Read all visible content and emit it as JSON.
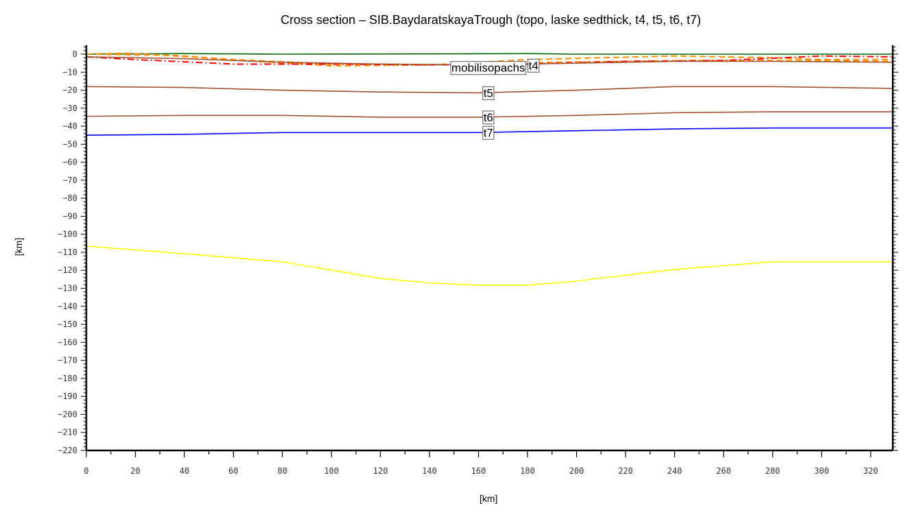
{
  "chart_data": {
    "type": "line",
    "title": "Cross section – SIB.BaydaratskayaTrough (topo, laske sedthick, t4, t5, t6, t7)",
    "xlabel": "[km]",
    "ylabel": "[km]",
    "xlim": [
      0,
      329
    ],
    "ylim": [
      -220,
      5
    ],
    "xticks": [
      0,
      20,
      40,
      60,
      80,
      100,
      120,
      140,
      160,
      180,
      200,
      220,
      240,
      260,
      280,
      300,
      320
    ],
    "yticks": [
      0,
      -10,
      -20,
      -30,
      -40,
      -50,
      -60,
      -70,
      -80,
      -90,
      -100,
      -110,
      -120,
      -130,
      -140,
      -150,
      -160,
      -170,
      -180,
      -190,
      -200,
      -210,
      -220
    ],
    "grid": false,
    "series": [
      {
        "id": "topo",
        "color": "#006400",
        "dash": "solid",
        "points": [
          [
            0,
            0
          ],
          [
            40,
            0.3
          ],
          [
            80,
            0
          ],
          [
            160,
            0.2
          ],
          [
            180,
            0.3
          ],
          [
            200,
            0
          ],
          [
            329,
            0
          ]
        ]
      },
      {
        "id": "sed1",
        "color": "#ff8c00",
        "dash": "dashed",
        "points": [
          [
            0,
            0
          ],
          [
            15,
            0.5
          ],
          [
            40,
            -1
          ],
          [
            70,
            -4
          ],
          [
            100,
            -6.5
          ],
          [
            140,
            -6
          ],
          [
            180,
            -3
          ],
          [
            240,
            -1
          ],
          [
            280,
            -2
          ],
          [
            300,
            -3
          ],
          [
            329,
            -3
          ]
        ]
      },
      {
        "id": "sed2",
        "color": "#ff8c00",
        "dash": "dashed",
        "points": [
          [
            0,
            0
          ],
          [
            30,
            -0.5
          ],
          [
            60,
            -3
          ],
          [
            100,
            -5.5
          ],
          [
            150,
            -5.8
          ],
          [
            190,
            -4.5
          ],
          [
            250,
            -3.5
          ],
          [
            290,
            -3.5
          ],
          [
            329,
            -4
          ]
        ]
      },
      {
        "id": "mobilisopachs",
        "color": "#ff0000",
        "dash": "dashdot",
        "points": [
          [
            0,
            -1.5
          ],
          [
            20,
            -3
          ],
          [
            60,
            -5.5
          ],
          [
            100,
            -5.5
          ],
          [
            140,
            -6
          ],
          [
            180,
            -5.5
          ],
          [
            220,
            -4
          ],
          [
            260,
            -3.5
          ],
          [
            300,
            -1
          ],
          [
            329,
            -1.5
          ]
        ]
      },
      {
        "id": "t4",
        "color": "#a0522d",
        "dash": "solid",
        "points": [
          [
            0,
            -1.5
          ],
          [
            40,
            -2.5
          ],
          [
            80,
            -4.5
          ],
          [
            120,
            -5.5
          ],
          [
            160,
            -6
          ],
          [
            200,
            -5
          ],
          [
            240,
            -4
          ],
          [
            280,
            -4
          ],
          [
            329,
            -4.5
          ]
        ]
      },
      {
        "id": "t5",
        "color": "#a0522d",
        "dash": "solid",
        "points": [
          [
            0,
            -18
          ],
          [
            40,
            -18.5
          ],
          [
            80,
            -20
          ],
          [
            120,
            -21
          ],
          [
            160,
            -21.5
          ],
          [
            200,
            -20
          ],
          [
            240,
            -18
          ],
          [
            280,
            -18
          ],
          [
            329,
            -19
          ]
        ]
      },
      {
        "id": "t6",
        "color": "#a0522d",
        "dash": "solid",
        "points": [
          [
            0,
            -34.5
          ],
          [
            40,
            -34
          ],
          [
            80,
            -34
          ],
          [
            120,
            -35
          ],
          [
            160,
            -35
          ],
          [
            200,
            -34
          ],
          [
            240,
            -32.5
          ],
          [
            280,
            -32
          ],
          [
            329,
            -32
          ]
        ]
      },
      {
        "id": "t7",
        "color": "#0000ff",
        "dash": "solid",
        "points": [
          [
            0,
            -45
          ],
          [
            40,
            -44.5
          ],
          [
            80,
            -43.5
          ],
          [
            160,
            -43.5
          ],
          [
            200,
            -42.5
          ],
          [
            240,
            -41.5
          ],
          [
            280,
            -41
          ],
          [
            329,
            -41
          ]
        ]
      },
      {
        "id": "moho",
        "color": "#ffff00",
        "dash": "solid",
        "points": [
          [
            0,
            -106.6
          ],
          [
            40,
            -110.8
          ],
          [
            80,
            -115.3
          ],
          [
            120,
            -124.5
          ],
          [
            140,
            -127
          ],
          [
            160,
            -128.3
          ],
          [
            180,
            -128.3
          ],
          [
            200,
            -126
          ],
          [
            240,
            -119.5
          ],
          [
            280,
            -115.3
          ],
          [
            329,
            -115.3
          ]
        ]
      }
    ],
    "annotations": [
      {
        "text": "mobilisopachs",
        "x": 164,
        "y": -7.5
      },
      {
        "text": "t4",
        "x": 164,
        "y": -6.2
      },
      {
        "text": "t5",
        "x": 164,
        "y": -21.5
      },
      {
        "text": "t6",
        "x": 164,
        "y": -35
      },
      {
        "text": "t7",
        "x": 164,
        "y": -43.5
      }
    ]
  }
}
